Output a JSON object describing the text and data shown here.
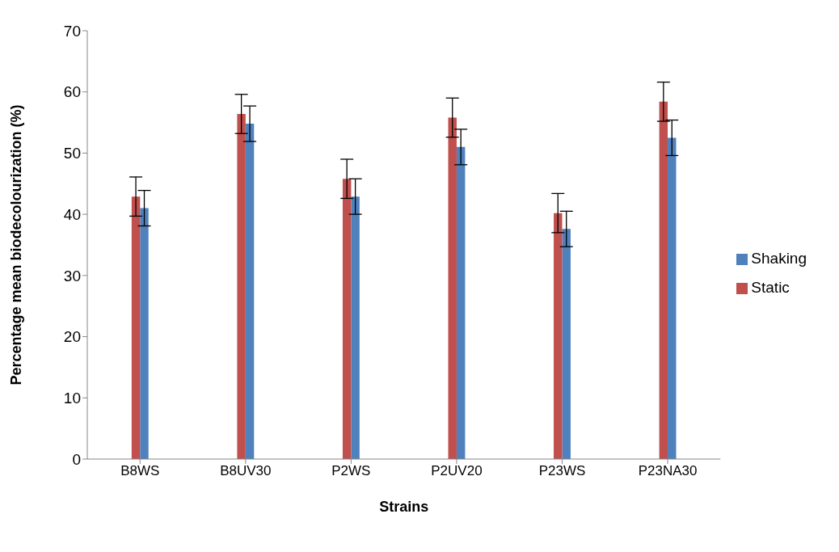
{
  "chart_data": {
    "type": "bar",
    "xlabel": "Strains",
    "ylabel": "Percentage mean biodecolourization (%)",
    "categories": [
      "B8WS",
      "B8UV30",
      "P2WS",
      "P2UV20",
      "P23WS",
      "P23NA30"
    ],
    "series": [
      {
        "name": "Shaking",
        "color": "#4f81bd",
        "values": [
          41.0,
          54.8,
          42.9,
          51.0,
          37.6,
          52.5
        ],
        "errors": [
          2.9,
          2.9,
          2.9,
          2.9,
          2.9,
          2.9
        ]
      },
      {
        "name": "Static",
        "color": "#c0504d",
        "values": [
          42.9,
          56.4,
          45.8,
          55.8,
          40.2,
          58.4
        ],
        "errors": [
          3.2,
          3.2,
          3.2,
          3.2,
          3.2,
          3.2
        ]
      }
    ],
    "ylim": [
      0,
      70
    ],
    "yticks": [
      0,
      10,
      20,
      30,
      40,
      50,
      60,
      70
    ],
    "grid": false,
    "legend": "right"
  }
}
